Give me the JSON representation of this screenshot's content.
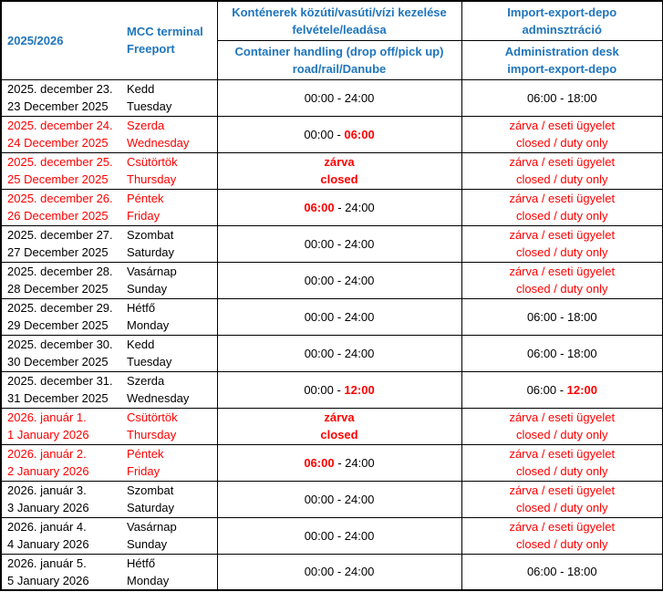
{
  "header": {
    "season_label": "2025/2026",
    "terminal_line1": "MCC terminal",
    "terminal_line2": "Freeport",
    "handling_hu_line1": "Konténerek közúti/vasúti/vízi kezelése",
    "handling_hu_line2": "felvétele/leadása",
    "handling_en_line1": "Container handling (drop off/pick up)",
    "handling_en_line2": "road/rail/Danube",
    "admin_hu_line1": "Import-export-depo",
    "admin_hu_line2": "adminsztráció",
    "admin_en_line1": "Administration desk",
    "admin_en_line2": "import-export-depo"
  },
  "colors": {
    "header_blue": "#1f75bc",
    "alert_red": "#ff0000",
    "text_black": "#000000",
    "border_black": "#000000"
  },
  "rows": [
    {
      "date_hu": "2025. december 23.",
      "date_en": "23 December 2025",
      "day_hu": "Kedd",
      "day_en": "Tuesday",
      "date_style": "k",
      "handling_lines": [
        [
          {
            "t": "00:00 - 24:00",
            "c": "k"
          }
        ]
      ],
      "admin_lines": [
        [
          {
            "t": "06:00 - 18:00",
            "c": "k"
          }
        ]
      ]
    },
    {
      "date_hu": "2025. december 24.",
      "date_en": "24 December 2025",
      "day_hu": "Szerda",
      "day_en": "Wednesday",
      "date_style": "r",
      "handling_lines": [
        [
          {
            "t": "00:00 - ",
            "c": "k"
          },
          {
            "t": "06:00",
            "c": "rb"
          }
        ]
      ],
      "admin_lines": [
        [
          {
            "t": "zárva / eseti ügyelet",
            "c": "r"
          }
        ],
        [
          {
            "t": "closed / duty only",
            "c": "r"
          }
        ]
      ]
    },
    {
      "date_hu": "2025. december 25.",
      "date_en": "25 December 2025",
      "day_hu": "Csütörtök",
      "day_en": "Thursday",
      "date_style": "r",
      "handling_lines": [
        [
          {
            "t": "zárva",
            "c": "rb"
          }
        ],
        [
          {
            "t": "closed",
            "c": "rb"
          }
        ]
      ],
      "admin_lines": [
        [
          {
            "t": "zárva / eseti ügyelet",
            "c": "r"
          }
        ],
        [
          {
            "t": "closed / duty only",
            "c": "r"
          }
        ]
      ]
    },
    {
      "date_hu": "2025. december 26.",
      "date_en": "26 December 2025",
      "day_hu": "Péntek",
      "day_en": "Friday",
      "date_style": "r",
      "handling_lines": [
        [
          {
            "t": "06:00",
            "c": "rb"
          },
          {
            "t": " - 24:00",
            "c": "k"
          }
        ]
      ],
      "admin_lines": [
        [
          {
            "t": "zárva / eseti ügyelet",
            "c": "r"
          }
        ],
        [
          {
            "t": "closed / duty only",
            "c": "r"
          }
        ]
      ]
    },
    {
      "date_hu": "2025. december 27.",
      "date_en": "27 December 2025",
      "day_hu": "Szombat",
      "day_en": "Saturday",
      "date_style": "k",
      "handling_lines": [
        [
          {
            "t": "00:00 - 24:00",
            "c": "k"
          }
        ]
      ],
      "admin_lines": [
        [
          {
            "t": "zárva / eseti ügyelet",
            "c": "r"
          }
        ],
        [
          {
            "t": "closed / duty only",
            "c": "r"
          }
        ]
      ]
    },
    {
      "date_hu": "2025. december 28.",
      "date_en": "28 December 2025",
      "day_hu": "Vasárnap",
      "day_en": "Sunday",
      "date_style": "k",
      "handling_lines": [
        [
          {
            "t": "00:00 - 24:00",
            "c": "k"
          }
        ]
      ],
      "admin_lines": [
        [
          {
            "t": "zárva / eseti ügyelet",
            "c": "r"
          }
        ],
        [
          {
            "t": "closed / duty only",
            "c": "r"
          }
        ]
      ]
    },
    {
      "date_hu": "2025. december 29.",
      "date_en": "29 December 2025",
      "day_hu": "Hétfő",
      "day_en": "Monday",
      "date_style": "k",
      "handling_lines": [
        [
          {
            "t": "00:00 - 24:00",
            "c": "k"
          }
        ]
      ],
      "admin_lines": [
        [
          {
            "t": "06:00 - 18:00",
            "c": "k"
          }
        ]
      ]
    },
    {
      "date_hu": "2025. december 30.",
      "date_en": "30 December 2025",
      "day_hu": "Kedd",
      "day_en": "Tuesday",
      "date_style": "k",
      "handling_lines": [
        [
          {
            "t": "00:00 - 24:00",
            "c": "k"
          }
        ]
      ],
      "admin_lines": [
        [
          {
            "t": "06:00 - 18:00",
            "c": "k"
          }
        ]
      ]
    },
    {
      "date_hu": "2025. december 31.",
      "date_en": "31 December 2025",
      "day_hu": "Szerda",
      "day_en": "Wednesday",
      "date_style": "k",
      "handling_lines": [
        [
          {
            "t": "00:00 - ",
            "c": "k"
          },
          {
            "t": "12:00",
            "c": "rb"
          }
        ]
      ],
      "admin_lines": [
        [
          {
            "t": "06:00 - ",
            "c": "k"
          },
          {
            "t": "12:00",
            "c": "rb"
          }
        ]
      ]
    },
    {
      "date_hu": "2026. január 1.",
      "date_en": "1 January 2026",
      "day_hu": "Csütörtök",
      "day_en": "Thursday",
      "date_style": "r",
      "handling_lines": [
        [
          {
            "t": "zárva",
            "c": "rb"
          }
        ],
        [
          {
            "t": "closed",
            "c": "rb"
          }
        ]
      ],
      "admin_lines": [
        [
          {
            "t": "zárva / eseti ügyelet",
            "c": "r"
          }
        ],
        [
          {
            "t": "closed / duty only",
            "c": "r"
          }
        ]
      ]
    },
    {
      "date_hu": "2026. január 2.",
      "date_en": "2 January 2026",
      "day_hu": "Péntek",
      "day_en": "Friday",
      "date_style": "r",
      "handling_lines": [
        [
          {
            "t": "06:00",
            "c": "rb"
          },
          {
            "t": " - 24:00",
            "c": "k"
          }
        ]
      ],
      "admin_lines": [
        [
          {
            "t": "zárva / eseti ügyelet",
            "c": "r"
          }
        ],
        [
          {
            "t": "closed / duty only",
            "c": "r"
          }
        ]
      ]
    },
    {
      "date_hu": "2026. január 3.",
      "date_en": "3 January 2026",
      "day_hu": "Szombat",
      "day_en": "Saturday",
      "date_style": "k",
      "handling_lines": [
        [
          {
            "t": "00:00 - 24:00",
            "c": "k"
          }
        ]
      ],
      "admin_lines": [
        [
          {
            "t": "zárva / eseti ügyelet",
            "c": "r"
          }
        ],
        [
          {
            "t": "closed / duty only",
            "c": "r"
          }
        ]
      ]
    },
    {
      "date_hu": "2026. január 4.",
      "date_en": "4 January 2026",
      "day_hu": "Vasárnap",
      "day_en": "Sunday",
      "date_style": "k",
      "handling_lines": [
        [
          {
            "t": "00:00 - 24:00",
            "c": "k"
          }
        ]
      ],
      "admin_lines": [
        [
          {
            "t": "zárva / eseti ügyelet",
            "c": "r"
          }
        ],
        [
          {
            "t": "closed / duty only",
            "c": "r"
          }
        ]
      ]
    },
    {
      "date_hu": "2026. január 5.",
      "date_en": "5 January 2026",
      "day_hu": "Hétfő",
      "day_en": "Monday",
      "date_style": "k",
      "handling_lines": [
        [
          {
            "t": "00:00 - 24:00",
            "c": "k"
          }
        ]
      ],
      "admin_lines": [
        [
          {
            "t": "06:00 - 18:00",
            "c": "k"
          }
        ]
      ]
    }
  ]
}
